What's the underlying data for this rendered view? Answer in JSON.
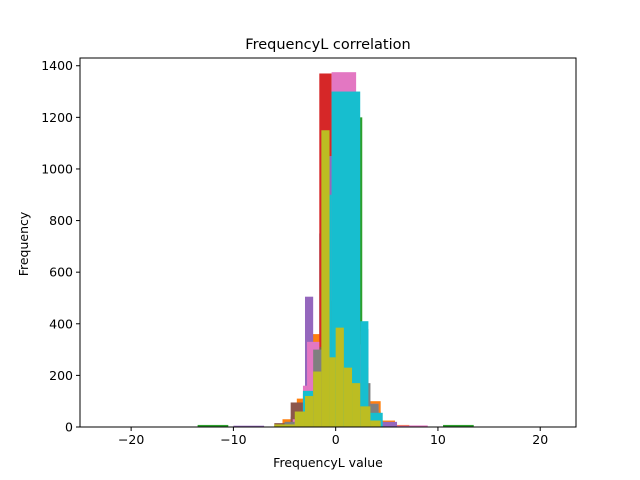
{
  "chart_data": {
    "type": "bar",
    "title": "FrequencyL correlation",
    "xlabel": "FrequencyL value",
    "ylabel": "Frequency",
    "xlim": [
      -25,
      23.5
    ],
    "ylim": [
      0,
      1430
    ],
    "xticks": [
      -20,
      -10,
      0,
      10,
      20
    ],
    "xtick_labels": [
      "−20",
      "−10",
      "0",
      "10",
      "20"
    ],
    "yticks": [
      0,
      200,
      400,
      600,
      800,
      1000,
      1200,
      1400
    ],
    "grid": false,
    "legend": "none",
    "series": [
      {
        "color": "#1f77b4",
        "bars": [
          {
            "x0": -1.6,
            "x1": -0.4,
            "y": 750
          },
          {
            "x0": -2.8,
            "x1": -1.6,
            "y": 70
          },
          {
            "x0": -4.0,
            "x1": -2.8,
            "y": 30
          },
          {
            "x0": -0.4,
            "x1": 0.8,
            "y": 1150
          },
          {
            "x0": 2.0,
            "x1": 3.2,
            "y": 380
          },
          {
            "x0": 3.2,
            "x1": 4.4,
            "y": 60
          },
          {
            "x0": 4.4,
            "x1": 5.6,
            "y": 15
          }
        ]
      },
      {
        "color": "#ff7f0e",
        "bars": [
          {
            "x0": -1.0,
            "x1": 0.4,
            "y": 1210
          },
          {
            "x0": 0.4,
            "x1": 1.6,
            "y": 1220
          },
          {
            "x0": -2.4,
            "x1": -1.0,
            "y": 360
          },
          {
            "x0": -3.8,
            "x1": -2.4,
            "y": 110
          },
          {
            "x0": -5.2,
            "x1": -3.8,
            "y": 30
          },
          {
            "x0": 1.6,
            "x1": 3.0,
            "y": 330
          },
          {
            "x0": 3.0,
            "x1": 4.4,
            "y": 100
          },
          {
            "x0": 4.4,
            "x1": 5.8,
            "y": 25
          },
          {
            "x0": 5.8,
            "x1": 7.2,
            "y": 8
          }
        ]
      },
      {
        "color": "#2ca02c",
        "bars": [
          {
            "x0": 0.0,
            "x1": 2.6,
            "y": 1200
          },
          {
            "x0": 2.6,
            "x1": 3.0,
            "y": 265
          },
          {
            "x0": -13.5,
            "x1": -10.5,
            "y": 8
          },
          {
            "x0": 10.5,
            "x1": 13.5,
            "y": 8
          },
          {
            "x0": 3.0,
            "x1": 4.2,
            "y": 55
          },
          {
            "x0": -4.2,
            "x1": -3.0,
            "y": 40
          },
          {
            "x0": -2.0,
            "x1": -1.0,
            "y": 250
          }
        ]
      },
      {
        "color": "#d62728",
        "bars": [
          {
            "x0": -1.6,
            "x1": -0.4,
            "y": 1370
          },
          {
            "x0": -2.8,
            "x1": -1.6,
            "y": 100
          },
          {
            "x0": -4.0,
            "x1": -2.8,
            "y": 30
          },
          {
            "x0": 0.8,
            "x1": 2.0,
            "y": 250
          },
          {
            "x0": 2.0,
            "x1": 3.2,
            "y": 80
          }
        ]
      },
      {
        "color": "#9467bd",
        "bars": [
          {
            "x0": -1.2,
            "x1": 0.6,
            "y": 1050
          },
          {
            "x0": -3.0,
            "x1": -2.2,
            "y": 505
          },
          {
            "x0": -2.2,
            "x1": -1.2,
            "y": 160
          },
          {
            "x0": 0.6,
            "x1": 2.4,
            "y": 200
          },
          {
            "x0": 2.4,
            "x1": 4.2,
            "y": 60
          },
          {
            "x0": -4.4,
            "x1": -3.0,
            "y": 40
          },
          {
            "x0": 4.2,
            "x1": 6.0,
            "y": 20
          },
          {
            "x0": -10.0,
            "x1": -7.0,
            "y": 5
          }
        ]
      },
      {
        "color": "#8c564b",
        "bars": [
          {
            "x0": -0.4,
            "x1": 2.0,
            "y": 1025
          },
          {
            "x0": 2.0,
            "x1": 3.2,
            "y": 230
          },
          {
            "x0": -2.0,
            "x1": -0.4,
            "y": 310
          },
          {
            "x0": -4.4,
            "x1": -3.2,
            "y": 95
          },
          {
            "x0": 3.2,
            "x1": 4.4,
            "y": 50
          },
          {
            "x0": -6.0,
            "x1": -4.4,
            "y": 15
          }
        ]
      },
      {
        "color": "#e377c2",
        "bars": [
          {
            "x0": -0.4,
            "x1": 2.0,
            "y": 1375
          },
          {
            "x0": 2.0,
            "x1": 3.0,
            "y": 320
          },
          {
            "x0": -2.8,
            "x1": -1.6,
            "y": 330
          },
          {
            "x0": -3.2,
            "x1": -2.8,
            "y": 160
          },
          {
            "x0": 3.0,
            "x1": 4.2,
            "y": 90
          },
          {
            "x0": -4.2,
            "x1": -3.2,
            "y": 30
          },
          {
            "x0": 6.0,
            "x1": 9.0,
            "y": 6
          }
        ]
      },
      {
        "color": "#7f7f7f",
        "bars": [
          {
            "x0": 0.0,
            "x1": 1.6,
            "y": 540
          },
          {
            "x0": -1.2,
            "x1": 0.0,
            "y": 490
          },
          {
            "x0": 1.6,
            "x1": 2.4,
            "y": 370
          },
          {
            "x0": -2.2,
            "x1": -1.2,
            "y": 300
          },
          {
            "x0": 2.4,
            "x1": 3.4,
            "y": 170
          },
          {
            "x0": -3.2,
            "x1": -2.2,
            "y": 130
          },
          {
            "x0": 3.4,
            "x1": 4.2,
            "y": 90
          },
          {
            "x0": -5.0,
            "x1": -4.0,
            "y": 20
          }
        ]
      },
      {
        "color": "#17becf",
        "bars": [
          {
            "x0": -0.4,
            "x1": 2.4,
            "y": 1300
          },
          {
            "x0": 2.4,
            "x1": 3.2,
            "y": 410
          },
          {
            "x0": -1.2,
            "x1": -0.4,
            "y": 900
          },
          {
            "x0": 3.2,
            "x1": 4.6,
            "y": 55
          },
          {
            "x0": -3.2,
            "x1": -2.2,
            "y": 140
          }
        ]
      },
      {
        "color": "#bcbd22",
        "bars": [
          {
            "x0": -1.4,
            "x1": -0.6,
            "y": 1150
          },
          {
            "x0": -0.6,
            "x1": 0.0,
            "y": 270
          },
          {
            "x0": 0.0,
            "x1": 0.8,
            "y": 385
          },
          {
            "x0": 0.8,
            "x1": 1.6,
            "y": 230
          },
          {
            "x0": -2.2,
            "x1": -1.4,
            "y": 215
          },
          {
            "x0": -3.0,
            "x1": -2.2,
            "y": 120
          },
          {
            "x0": 1.6,
            "x1": 2.4,
            "y": 170
          },
          {
            "x0": 2.4,
            "x1": 3.4,
            "y": 80
          },
          {
            "x0": -4.0,
            "x1": -3.0,
            "y": 60
          },
          {
            "x0": 3.4,
            "x1": 4.4,
            "y": 25
          },
          {
            "x0": -6.0,
            "x1": -4.0,
            "y": 10
          }
        ]
      }
    ]
  }
}
